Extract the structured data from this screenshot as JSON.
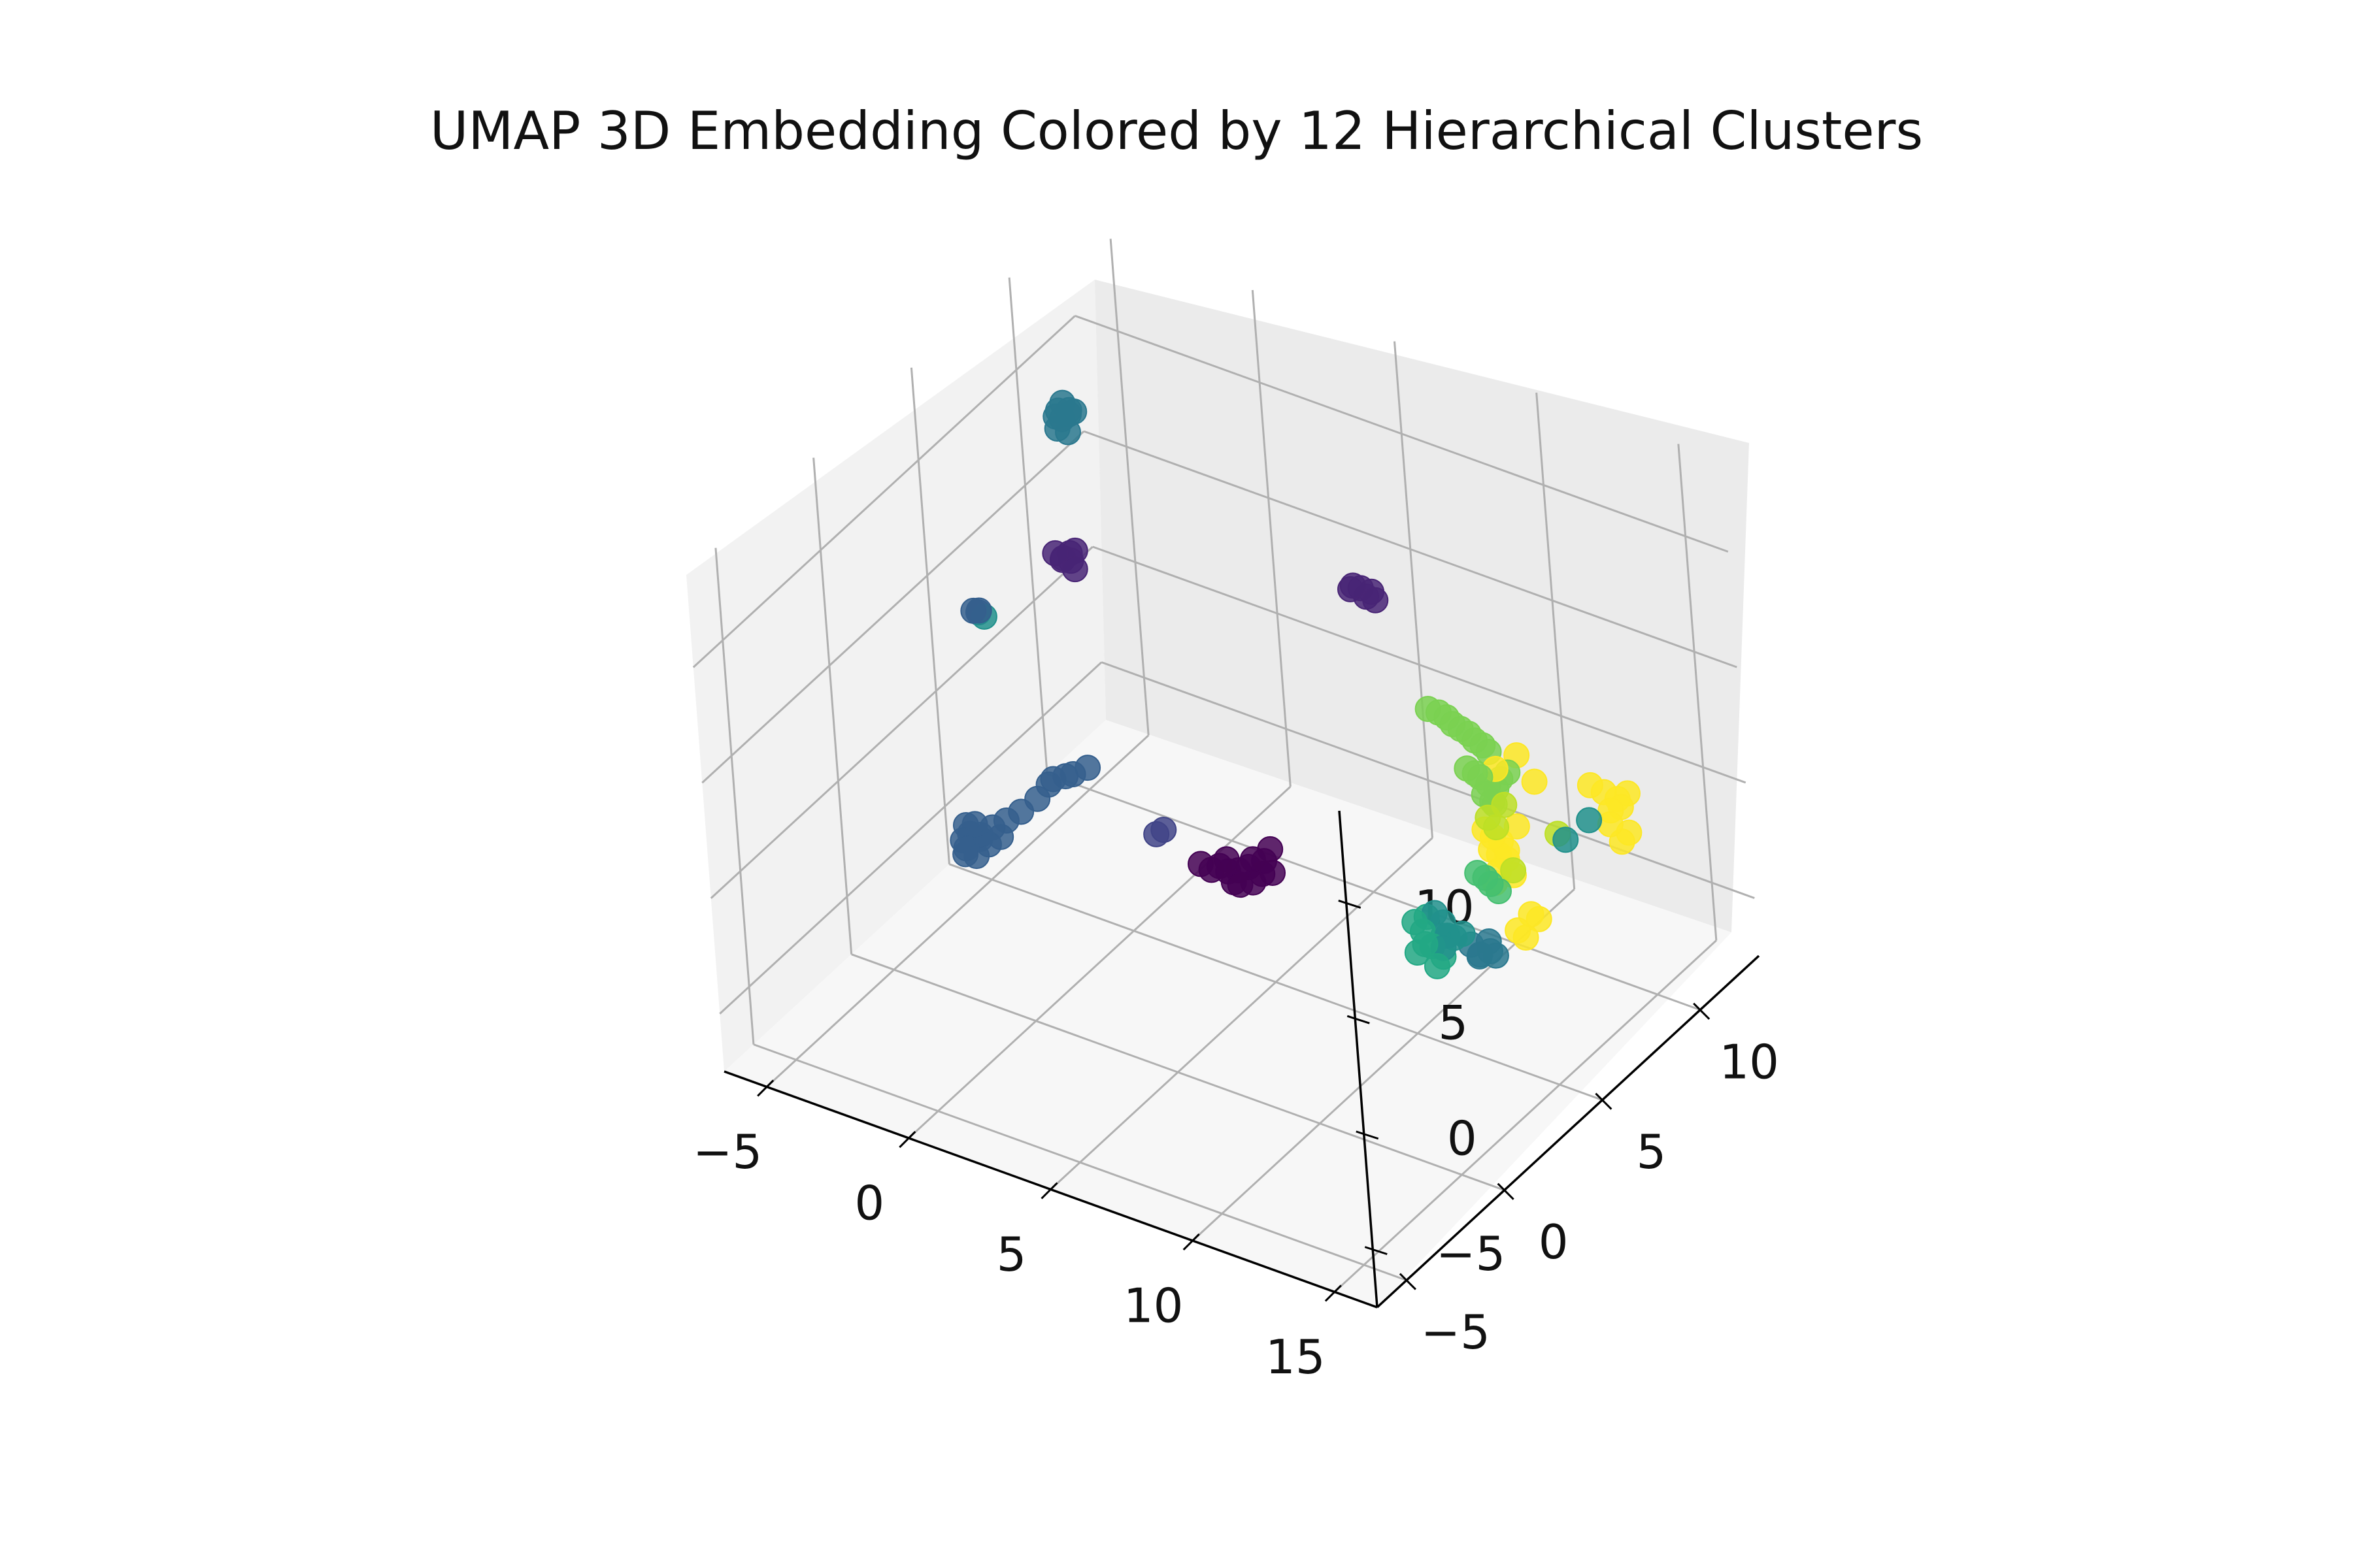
{
  "title": "UMAP 3D Embedding Colored by 12 Hierarchical Clusters",
  "chart_data": {
    "type": "scatter",
    "projection": "3d",
    "title": "UMAP 3D Embedding Colored by 12 Hierarchical Clusters",
    "xlabel": "",
    "ylabel": "",
    "zlabel": "",
    "xlim": [
      -6.5,
      16.5
    ],
    "ylim": [
      -6.5,
      13
    ],
    "zlim": [
      -7.5,
      14
    ],
    "x_ticks": [
      "−5",
      "0",
      "5",
      "10",
      "15"
    ],
    "y_ticks": [
      "−5",
      "0",
      "5",
      "10"
    ],
    "z_ticks": [
      "−5",
      "0",
      "5",
      "10"
    ],
    "grid": true,
    "legend": "none",
    "colormap": "viridis",
    "colors": [
      "#440154",
      "#482475",
      "#414487",
      "#355f8d",
      "#2a788e",
      "#21918c",
      "#22a884",
      "#44bf70",
      "#7ad151",
      "#bddf26",
      "#fde725",
      "#fde725"
    ],
    "clusters": [
      {
        "cluster": 0,
        "color": "#440154",
        "points": [
          [
            4.8,
            3.0,
            -1.0
          ],
          [
            5.1,
            3.0,
            -1.1
          ],
          [
            5.4,
            3.1,
            -1.0
          ],
          [
            5.7,
            3.2,
            -0.8
          ],
          [
            5.9,
            3.1,
            -1.3
          ],
          [
            6.1,
            3.3,
            -1.0
          ],
          [
            4.2,
            2.9,
            -1.1
          ],
          [
            4.5,
            3.0,
            -1.3
          ],
          [
            5.0,
            3.1,
            -0.7
          ],
          [
            5.5,
            3.0,
            -1.5
          ],
          [
            6.2,
            3.3,
            -0.4
          ],
          [
            6.4,
            3.4,
            -0.9
          ],
          [
            6.3,
            3.5,
            0.0
          ],
          [
            5.8,
            3.3,
            -0.5
          ],
          [
            5.2,
            3.1,
            -1.6
          ]
        ]
      },
      {
        "cluster": 1,
        "color": "#482475",
        "points": [
          [
            -3.2,
            7.2,
            5.5
          ],
          [
            -3.0,
            7.3,
            5.4
          ],
          [
            -2.8,
            7.2,
            5.2
          ],
          [
            -3.4,
            7.1,
            5.7
          ],
          [
            -3.1,
            7.4,
            5.6
          ],
          [
            -2.9,
            7.4,
            5.8
          ],
          [
            -3.3,
            7.3,
            5.3
          ],
          [
            5.6,
            9.2,
            6.5
          ],
          [
            5.9,
            9.3,
            6.6
          ],
          [
            6.2,
            9.4,
            6.5
          ],
          [
            6.4,
            9.3,
            6.3
          ],
          [
            6.0,
            9.4,
            6.2
          ],
          [
            5.7,
            9.2,
            6.7
          ]
        ]
      },
      {
        "cluster": 2,
        "color": "#414487",
        "points": [
          [
            2.6,
            3.0,
            -0.6
          ],
          [
            2.8,
            3.1,
            -0.4
          ]
        ]
      },
      {
        "cluster": 3,
        "color": "#355f8d",
        "points": [
          [
            -2.6,
            0.8,
            -0.8
          ],
          [
            -2.4,
            0.7,
            -1.0
          ],
          [
            -2.2,
            0.9,
            -1.3
          ],
          [
            -2.5,
            0.6,
            -1.6
          ],
          [
            -2.3,
            0.8,
            -2.0
          ],
          [
            -2.1,
            0.8,
            -1.0
          ],
          [
            -1.8,
            1.0,
            -0.7
          ],
          [
            -1.5,
            1.3,
            -0.5
          ],
          [
            -1.1,
            1.5,
            -0.1
          ],
          [
            -0.7,
            1.8,
            0.4
          ],
          [
            -0.3,
            2.1,
            1.2
          ],
          [
            0.2,
            2.4,
            1.4
          ],
          [
            0.6,
            2.6,
            1.7
          ],
          [
            -2.6,
            0.6,
            -1.3
          ],
          [
            -2.2,
            0.7,
            -0.5
          ],
          [
            -1.9,
            0.9,
            -1.4
          ],
          [
            -2.7,
            0.8,
            -2.1
          ],
          [
            -1.6,
            1.1,
            -1.1
          ],
          [
            -0.4,
            2.0,
            1.0
          ],
          [
            0.0,
            2.3,
            1.3
          ],
          [
            -2.8,
            2.2,
            7.3
          ],
          [
            -2.7,
            2.3,
            7.2
          ],
          [
            -2.6,
            2.2,
            7.4
          ]
        ]
      },
      {
        "cluster": 4,
        "color": "#2a788e",
        "points": [
          [
            -2.9,
            7.1,
            12.1
          ],
          [
            -2.7,
            7.0,
            11.9
          ],
          [
            -2.5,
            7.1,
            12.3
          ],
          [
            -2.8,
            7.2,
            12.4
          ],
          [
            -2.6,
            7.2,
            12.0
          ],
          [
            -2.9,
            7.0,
            11.4
          ],
          [
            -2.6,
            7.1,
            11.3
          ],
          [
            -2.4,
            7.2,
            12.2
          ],
          [
            -3.0,
            7.1,
            11.8
          ],
          [
            12.1,
            5.1,
            -2.8
          ],
          [
            12.4,
            5.1,
            -3.1
          ],
          [
            12.7,
            5.2,
            -2.9
          ],
          [
            12.3,
            5.2,
            -3.3
          ],
          [
            12.6,
            5.3,
            -2.6
          ],
          [
            12.9,
            5.2,
            -3.0
          ]
        ]
      },
      {
        "cluster": 5,
        "color": "#21918c",
        "points": [
          [
            11.4,
            4.4,
            -1.2
          ],
          [
            11.6,
            4.5,
            -1.6
          ],
          [
            11.8,
            4.4,
            -2.0
          ],
          [
            11.9,
            4.6,
            -2.2
          ],
          [
            12.2,
            4.6,
            -1.9
          ],
          [
            11.5,
            4.6,
            -2.3
          ],
          [
            11.7,
            4.3,
            -2.5
          ],
          [
            -2.5,
            2.3,
            7.1
          ],
          [
            14.6,
            6.7,
            1.6
          ],
          [
            15.2,
            7.1,
            2.4
          ]
        ]
      },
      {
        "cluster": 6,
        "color": "#22a884",
        "points": [
          [
            10.8,
            4.2,
            -1.7
          ],
          [
            11.0,
            4.3,
            -2.1
          ],
          [
            11.2,
            4.1,
            -2.4
          ],
          [
            11.1,
            4.4,
            -1.5
          ],
          [
            11.3,
            4.3,
            -2.6
          ],
          [
            10.9,
            4.1,
            -2.9
          ],
          [
            11.5,
            4.2,
            -3.3
          ],
          [
            11.6,
            4.4,
            -3.0
          ]
        ]
      },
      {
        "cluster": 7,
        "color": "#44bf70",
        "points": [
          [
            12.6,
            5.0,
            0.6
          ],
          [
            12.8,
            5.1,
            0.4
          ],
          [
            12.9,
            5.2,
            0.1
          ],
          [
            13.1,
            5.3,
            -0.2
          ]
        ]
      },
      {
        "cluster": 8,
        "color": "#7ad151",
        "points": [
          [
            9.9,
            6.8,
            5.1
          ],
          [
            10.2,
            6.9,
            5.0
          ],
          [
            10.4,
            7.0,
            4.8
          ],
          [
            10.6,
            7.0,
            4.6
          ],
          [
            10.8,
            7.1,
            4.4
          ],
          [
            11.0,
            7.2,
            4.2
          ],
          [
            11.2,
            7.2,
            4.0
          ],
          [
            11.4,
            7.3,
            3.8
          ],
          [
            11.6,
            7.3,
            3.6
          ],
          [
            11.3,
            6.6,
            3.3
          ],
          [
            11.5,
            6.7,
            3.1
          ],
          [
            11.6,
            6.8,
            2.9
          ],
          [
            11.8,
            6.9,
            2.6
          ],
          [
            12.0,
            7.0,
            2.4
          ],
          [
            11.7,
            6.8,
            2.2
          ],
          [
            11.9,
            6.9,
            1.9
          ],
          [
            12.1,
            7.1,
            2.8
          ],
          [
            12.3,
            7.2,
            3.1
          ],
          [
            11.9,
            7.0,
            1.7
          ]
        ]
      },
      {
        "cluster": 9,
        "color": "#bddf26",
        "points": [
          [
            12.3,
            6.1,
            2.0
          ],
          [
            12.5,
            6.2,
            1.6
          ],
          [
            14.1,
            7.0,
            1.4
          ],
          [
            13.3,
            5.8,
            0.4
          ],
          [
            12.7,
            6.4,
            2.5
          ]
        ]
      },
      {
        "cluster": 10,
        "color": "#fde725",
        "points": [
          [
            12.0,
            6.3,
            1.2
          ],
          [
            12.2,
            6.4,
            0.9
          ],
          [
            12.4,
            6.5,
            0.7
          ],
          [
            12.1,
            6.4,
            0.3
          ],
          [
            12.3,
            6.5,
            0.1
          ],
          [
            12.5,
            6.6,
            -0.1
          ],
          [
            12.6,
            6.5,
            0.4
          ],
          [
            12.4,
            6.3,
            -0.4
          ],
          [
            12.7,
            6.6,
            -0.7
          ],
          [
            12.3,
            6.2,
            -0.9
          ],
          [
            12.8,
            6.8,
            1.3
          ],
          [
            14.2,
            8.6,
            2.3
          ],
          [
            14.6,
            8.7,
            2.1
          ],
          [
            15.0,
            8.8,
            1.9
          ],
          [
            15.3,
            8.9,
            2.2
          ],
          [
            15.1,
            8.8,
            1.6
          ],
          [
            14.8,
            8.7,
            1.4
          ],
          [
            14.9,
            8.5,
            1.0
          ],
          [
            15.4,
            8.7,
            0.7
          ],
          [
            15.2,
            8.6,
            0.3
          ],
          [
            13.6,
            6.1,
            -1.6
          ],
          [
            13.8,
            6.2,
            -1.8
          ],
          [
            13.3,
            5.8,
            -2.2
          ],
          [
            13.5,
            5.9,
            -2.5
          ]
        ]
      },
      {
        "cluster": 11,
        "color": "#fde725",
        "points": [
          [
            12.1,
            6.9,
            3.4
          ],
          [
            12.6,
            7.3,
            3.9
          ],
          [
            13.1,
            7.4,
            2.9
          ]
        ]
      }
    ]
  }
}
